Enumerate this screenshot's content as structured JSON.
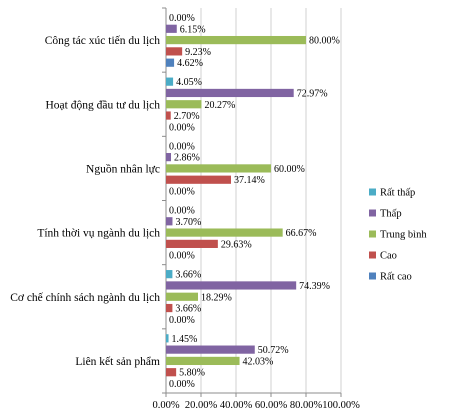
{
  "chart_data": {
    "type": "bar",
    "orientation": "horizontal",
    "categories": [
      "Công tác xúc tiến du lịch",
      "Hoạt động đầu tư du lịch",
      "Nguồn nhân lực",
      "Tính thời vụ ngành  du lịch",
      "Cơ chế chính sách ngành du lịch",
      "Liên kết sản phẩm"
    ],
    "series": [
      {
        "name": "Rất thấp",
        "color": "#4bacc6",
        "values": [
          0.0,
          4.05,
          0.0,
          0.0,
          3.66,
          1.45
        ],
        "labels": [
          "0.00%",
          "4.05%",
          "0.00%",
          "0.00%",
          "3.66%",
          "1.45%"
        ]
      },
      {
        "name": "Thấp",
        "color": "#8064a2",
        "values": [
          6.15,
          72.97,
          2.86,
          3.7,
          74.39,
          50.72
        ],
        "labels": [
          "6.15%",
          "72.97%",
          "2.86%",
          "3.70%",
          "74.39%",
          "50.72%"
        ]
      },
      {
        "name": "Trung bình",
        "color": "#9bbb59",
        "values": [
          80.0,
          20.27,
          60.0,
          66.67,
          18.29,
          42.03
        ],
        "labels": [
          "80.00%",
          "20.27%",
          "60.00%",
          "66.67%",
          "18.29%",
          "42.03%"
        ]
      },
      {
        "name": "Cao",
        "color": "#c0504d",
        "values": [
          9.23,
          2.7,
          37.14,
          29.63,
          3.66,
          5.8
        ],
        "labels": [
          "9.23%",
          "2.70%",
          "37.14%",
          "29.63%",
          "3.66%",
          "5.80%"
        ]
      },
      {
        "name": "Rất cao",
        "color": "#4f81bd",
        "values": [
          4.62,
          0.0,
          0.0,
          0.0,
          0.0,
          0.0
        ],
        "labels": [
          "4.62%",
          "0.00%",
          "0.00%",
          "0.00%",
          "0.00%",
          "0.00%"
        ]
      }
    ],
    "xlim": [
      0,
      100
    ],
    "xticks": [
      "0.00%",
      "20.00%",
      "40.00%",
      "60.00%",
      "80.00%",
      "100.00%"
    ],
    "title": "",
    "xlabel": "",
    "ylabel": "",
    "grid": "vertical",
    "legend": "right"
  }
}
